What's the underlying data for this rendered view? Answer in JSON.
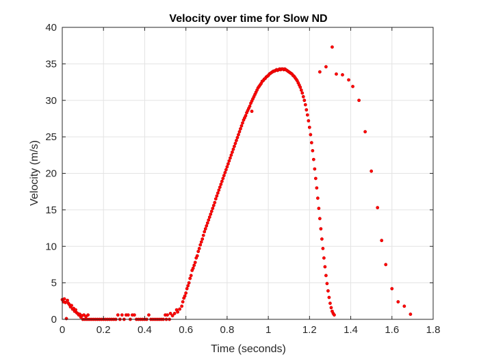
{
  "chart_data": {
    "type": "scatter",
    "title": "Velocity over time for Slow ND",
    "xlabel": "Time (seconds)",
    "ylabel": "Velocity (m/s)",
    "xlim": [
      0,
      1.8
    ],
    "ylim": [
      0,
      40
    ],
    "x_ticks": [
      0,
      0.2,
      0.4,
      0.6,
      0.8,
      1,
      1.2,
      1.4,
      1.6,
      1.8
    ],
    "x_tick_labels": [
      "0",
      "0.2",
      "0.4",
      "0.6",
      "0.8",
      "1",
      "1.2",
      "1.4",
      "1.6",
      "1.8"
    ],
    "y_ticks": [
      0,
      5,
      10,
      15,
      20,
      25,
      30,
      35,
      40
    ],
    "y_tick_labels": [
      "0",
      "5",
      "10",
      "15",
      "20",
      "25",
      "30",
      "35",
      "40"
    ],
    "grid": true,
    "marker_color": "#ff0000",
    "marker_edge_color": "#cc0000",
    "series": [
      {
        "points": [
          [
            0.0,
            2.7
          ],
          [
            0.005,
            2.4
          ],
          [
            0.01,
            2.8
          ],
          [
            0.015,
            2.3
          ],
          [
            0.02,
            0.1
          ],
          [
            0.025,
            2.6
          ],
          [
            0.03,
            2.2
          ],
          [
            0.035,
            2.0
          ],
          [
            0.04,
            1.7
          ],
          [
            0.045,
            1.9
          ],
          [
            0.05,
            1.4
          ],
          [
            0.055,
            1.5
          ],
          [
            0.06,
            1.1
          ],
          [
            0.065,
            1.3
          ],
          [
            0.07,
            0.9
          ],
          [
            0.075,
            0.8
          ],
          [
            0.08,
            0.6
          ],
          [
            0.085,
            0.7
          ],
          [
            0.09,
            0.3
          ],
          [
            0.095,
            0.5
          ],
          [
            0.1,
            0.0
          ],
          [
            0.105,
            0.6
          ],
          [
            0.11,
            0.0
          ],
          [
            0.115,
            0.4
          ],
          [
            0.12,
            0.0
          ],
          [
            0.125,
            0.6
          ],
          [
            0.13,
            0.0
          ],
          [
            0.14,
            0.0
          ],
          [
            0.15,
            0.0
          ],
          [
            0.16,
            0.0
          ],
          [
            0.17,
            0.0
          ],
          [
            0.18,
            0.0
          ],
          [
            0.19,
            0.0
          ],
          [
            0.2,
            0.0
          ],
          [
            0.21,
            0.0
          ],
          [
            0.22,
            0.0
          ],
          [
            0.23,
            0.0
          ],
          [
            0.24,
            0.0
          ],
          [
            0.25,
            0.0
          ],
          [
            0.26,
            0.0
          ],
          [
            0.27,
            0.6
          ],
          [
            0.28,
            0.0
          ],
          [
            0.29,
            0.6
          ],
          [
            0.3,
            0.0
          ],
          [
            0.31,
            0.6
          ],
          [
            0.32,
            0.6
          ],
          [
            0.33,
            0.0
          ],
          [
            0.34,
            0.6
          ],
          [
            0.35,
            0.6
          ],
          [
            0.36,
            0.0
          ],
          [
            0.37,
            0.0
          ],
          [
            0.38,
            0.0
          ],
          [
            0.39,
            0.0
          ],
          [
            0.4,
            0.0
          ],
          [
            0.41,
            0.0
          ],
          [
            0.42,
            0.6
          ],
          [
            0.43,
            0.0
          ],
          [
            0.44,
            0.0
          ],
          [
            0.45,
            0.0
          ],
          [
            0.46,
            0.0
          ],
          [
            0.47,
            0.0
          ],
          [
            0.48,
            0.0
          ],
          [
            0.49,
            0.0
          ],
          [
            0.5,
            0.6
          ],
          [
            0.505,
            0.0
          ],
          [
            0.51,
            0.6
          ],
          [
            0.52,
            0.0
          ],
          [
            0.525,
            0.8
          ],
          [
            0.535,
            0.5
          ],
          [
            0.545,
            0.8
          ],
          [
            0.555,
            1.3
          ],
          [
            0.56,
            1.0
          ],
          [
            0.57,
            1.4
          ],
          [
            0.58,
            1.8
          ],
          [
            0.585,
            2.4
          ],
          [
            0.59,
            2.9
          ],
          [
            0.595,
            3.2
          ],
          [
            0.6,
            3.6
          ],
          [
            0.605,
            4.2
          ],
          [
            0.61,
            4.6
          ],
          [
            0.615,
            5.0
          ],
          [
            0.62,
            5.6
          ],
          [
            0.625,
            6.0
          ],
          [
            0.63,
            6.7
          ],
          [
            0.635,
            7.0
          ],
          [
            0.64,
            7.4
          ],
          [
            0.645,
            7.8
          ],
          [
            0.65,
            8.4
          ],
          [
            0.655,
            8.7
          ],
          [
            0.66,
            9.3
          ],
          [
            0.665,
            9.7
          ],
          [
            0.67,
            10.2
          ],
          [
            0.675,
            10.6
          ],
          [
            0.68,
            11.0
          ],
          [
            0.685,
            11.5
          ],
          [
            0.69,
            12.0
          ],
          [
            0.695,
            12.4
          ],
          [
            0.7,
            12.8
          ],
          [
            0.705,
            13.2
          ],
          [
            0.71,
            13.6
          ],
          [
            0.715,
            14.0
          ],
          [
            0.72,
            14.4
          ],
          [
            0.725,
            14.8
          ],
          [
            0.73,
            15.2
          ],
          [
            0.735,
            15.6
          ],
          [
            0.74,
            16.0
          ],
          [
            0.745,
            16.5
          ],
          [
            0.75,
            16.9
          ],
          [
            0.755,
            17.3
          ],
          [
            0.76,
            17.7
          ],
          [
            0.765,
            18.1
          ],
          [
            0.77,
            18.5
          ],
          [
            0.775,
            18.9
          ],
          [
            0.78,
            19.3
          ],
          [
            0.785,
            19.7
          ],
          [
            0.79,
            20.1
          ],
          [
            0.795,
            20.5
          ],
          [
            0.8,
            20.9
          ],
          [
            0.805,
            21.3
          ],
          [
            0.81,
            21.7
          ],
          [
            0.815,
            22.1
          ],
          [
            0.82,
            22.5
          ],
          [
            0.825,
            22.9
          ],
          [
            0.83,
            23.3
          ],
          [
            0.835,
            23.7
          ],
          [
            0.84,
            24.1
          ],
          [
            0.845,
            24.5
          ],
          [
            0.85,
            24.9
          ],
          [
            0.855,
            25.3
          ],
          [
            0.86,
            25.7
          ],
          [
            0.865,
            26.1
          ],
          [
            0.87,
            26.5
          ],
          [
            0.875,
            26.9
          ],
          [
            0.88,
            27.3
          ],
          [
            0.885,
            27.6
          ],
          [
            0.89,
            27.9
          ],
          [
            0.895,
            28.3
          ],
          [
            0.9,
            28.6
          ],
          [
            0.905,
            28.9
          ],
          [
            0.91,
            29.2
          ],
          [
            0.915,
            29.6
          ],
          [
            0.92,
            29.9
          ],
          [
            0.925,
            30.2
          ],
          [
            0.93,
            30.5
          ],
          [
            0.935,
            30.8
          ],
          [
            0.94,
            31.1
          ],
          [
            0.945,
            31.4
          ],
          [
            0.95,
            31.7
          ],
          [
            0.955,
            31.9
          ],
          [
            0.96,
            32.1
          ],
          [
            0.965,
            32.3
          ],
          [
            0.97,
            32.6
          ],
          [
            0.975,
            32.7
          ],
          [
            0.98,
            32.9
          ],
          [
            0.985,
            33.0
          ],
          [
            0.99,
            33.2
          ],
          [
            0.995,
            33.3
          ],
          [
            1.0,
            33.4
          ],
          [
            1.005,
            33.6
          ],
          [
            1.01,
            33.7
          ],
          [
            1.015,
            33.8
          ],
          [
            1.02,
            33.9
          ],
          [
            1.025,
            34.0
          ],
          [
            1.03,
            34.0
          ],
          [
            1.035,
            34.1
          ],
          [
            1.04,
            34.2
          ],
          [
            1.045,
            34.1
          ],
          [
            1.05,
            34.2
          ],
          [
            1.055,
            34.3
          ],
          [
            1.06,
            34.2
          ],
          [
            1.065,
            34.3
          ],
          [
            1.07,
            34.3
          ],
          [
            1.075,
            34.2
          ],
          [
            1.08,
            34.3
          ],
          [
            1.085,
            34.2
          ],
          [
            1.09,
            34.1
          ],
          [
            1.095,
            34.0
          ],
          [
            1.1,
            33.9
          ],
          [
            1.105,
            33.8
          ],
          [
            1.11,
            33.7
          ],
          [
            1.115,
            33.6
          ],
          [
            1.12,
            33.4
          ],
          [
            1.125,
            33.3
          ],
          [
            1.13,
            33.1
          ],
          [
            1.135,
            32.9
          ],
          [
            1.14,
            32.7
          ],
          [
            1.145,
            32.4
          ],
          [
            1.15,
            32.1
          ],
          [
            1.155,
            31.8
          ],
          [
            1.16,
            31.4
          ],
          [
            1.165,
            31.0
          ],
          [
            1.17,
            30.5
          ],
          [
            1.175,
            30.0
          ],
          [
            1.18,
            29.4
          ],
          [
            1.185,
            28.7
          ],
          [
            1.19,
            28.0
          ],
          [
            1.195,
            27.2
          ],
          [
            1.2,
            26.3
          ],
          [
            1.205,
            25.3
          ],
          [
            1.21,
            24.2
          ],
          [
            1.215,
            23.1
          ],
          [
            1.22,
            21.9
          ],
          [
            1.225,
            20.6
          ],
          [
            1.23,
            19.3
          ],
          [
            1.235,
            18.0
          ],
          [
            1.24,
            16.6
          ],
          [
            1.245,
            15.2
          ],
          [
            1.25,
            13.8
          ],
          [
            1.255,
            12.4
          ],
          [
            1.26,
            11.0
          ],
          [
            1.265,
            9.7
          ],
          [
            1.27,
            8.4
          ],
          [
            1.275,
            7.2
          ],
          [
            1.28,
            6.0
          ],
          [
            1.285,
            4.9
          ],
          [
            1.29,
            3.9
          ],
          [
            1.295,
            3.0
          ],
          [
            1.3,
            2.2
          ],
          [
            1.305,
            1.6
          ],
          [
            1.31,
            1.1
          ],
          [
            1.315,
            0.8
          ],
          [
            1.32,
            0.6
          ],
          [
            0.92,
            28.5
          ],
          [
            1.31,
            37.3
          ],
          [
            1.28,
            34.6
          ],
          [
            1.25,
            33.9
          ],
          [
            1.33,
            33.6
          ],
          [
            1.36,
            33.5
          ],
          [
            1.39,
            32.8
          ],
          [
            1.41,
            31.9
          ],
          [
            1.44,
            30.0
          ],
          [
            1.47,
            25.7
          ],
          [
            1.5,
            20.3
          ],
          [
            1.53,
            15.3
          ],
          [
            1.55,
            10.8
          ],
          [
            1.57,
            7.5
          ],
          [
            1.6,
            4.2
          ],
          [
            1.63,
            2.4
          ],
          [
            1.66,
            1.8
          ],
          [
            1.69,
            0.7
          ]
        ]
      }
    ]
  }
}
